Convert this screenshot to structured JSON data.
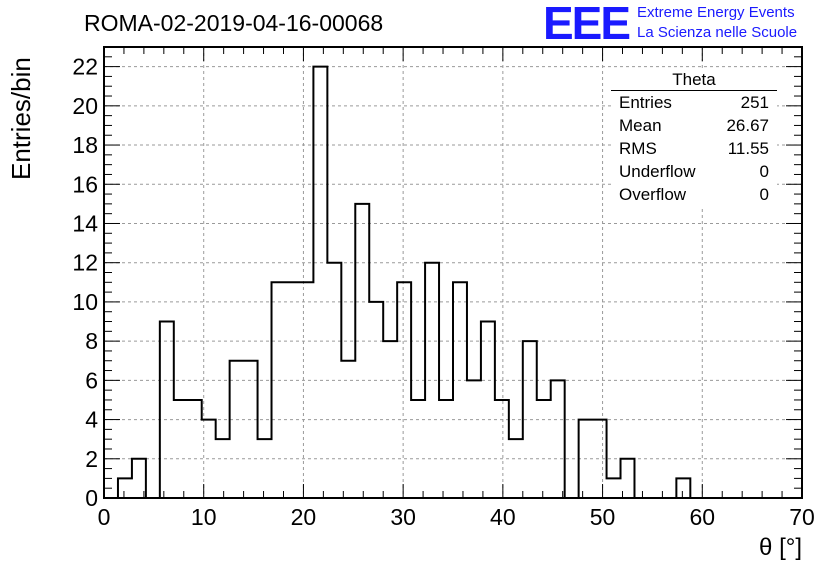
{
  "header": {
    "title": "ROMA-02-2019-04-16-00068",
    "logo": "EEE",
    "logo_line1": "Extreme Energy Events",
    "logo_line2": "La Scienza nelle Scuole"
  },
  "stats_box": {
    "name": "Theta",
    "rows": [
      {
        "label": "Entries",
        "value": "251"
      },
      {
        "label": "Mean",
        "value": "26.67"
      },
      {
        "label": "RMS",
        "value": "11.55"
      },
      {
        "label": "Underflow",
        "value": "0"
      },
      {
        "label": "Overflow",
        "value": "0"
      }
    ]
  },
  "chart_data": {
    "type": "bar",
    "style": "step-histogram",
    "title": "ROMA-02-2019-04-16-00068",
    "xlabel": "θ [°]",
    "ylabel": "Entries/bin",
    "xlim": [
      0,
      70
    ],
    "ylim": [
      0,
      23
    ],
    "x_ticks": [
      0,
      10,
      20,
      30,
      40,
      50,
      60,
      70
    ],
    "y_ticks": [
      0,
      2,
      4,
      6,
      8,
      10,
      12,
      14,
      16,
      18,
      20,
      22
    ],
    "grid": true,
    "bin_edges": [
      0,
      1.4,
      2.8,
      4.2,
      5.6,
      7,
      8.4,
      9.8,
      11.2,
      12.6,
      14,
      15.4,
      16.8,
      18.2,
      19.6,
      21,
      22.4,
      23.8,
      25.2,
      26.6,
      28,
      29.4,
      30.8,
      32.2,
      33.6,
      35,
      36.4,
      37.8,
      39.2,
      40.6,
      42,
      43.4,
      44.8,
      46.2,
      47.6,
      49,
      50.4,
      51.8,
      53.2,
      54.6,
      56,
      57.4,
      58.8,
      60.2,
      61.6,
      63,
      64.4,
      65.8,
      67.2,
      68.6,
      70
    ],
    "values": [
      0,
      1,
      2,
      0,
      9,
      5,
      5,
      4,
      3,
      7,
      7,
      3,
      11,
      11,
      11,
      22,
      12,
      7,
      15,
      10,
      8,
      11,
      5,
      12,
      5,
      11,
      6,
      9,
      5,
      3,
      8,
      5,
      6,
      0,
      4,
      4,
      1,
      2,
      0,
      0,
      0,
      1,
      0,
      0,
      0,
      0,
      0,
      0,
      0,
      0
    ],
    "line_color": "#000000",
    "grid_color": "#9a9a9a"
  }
}
